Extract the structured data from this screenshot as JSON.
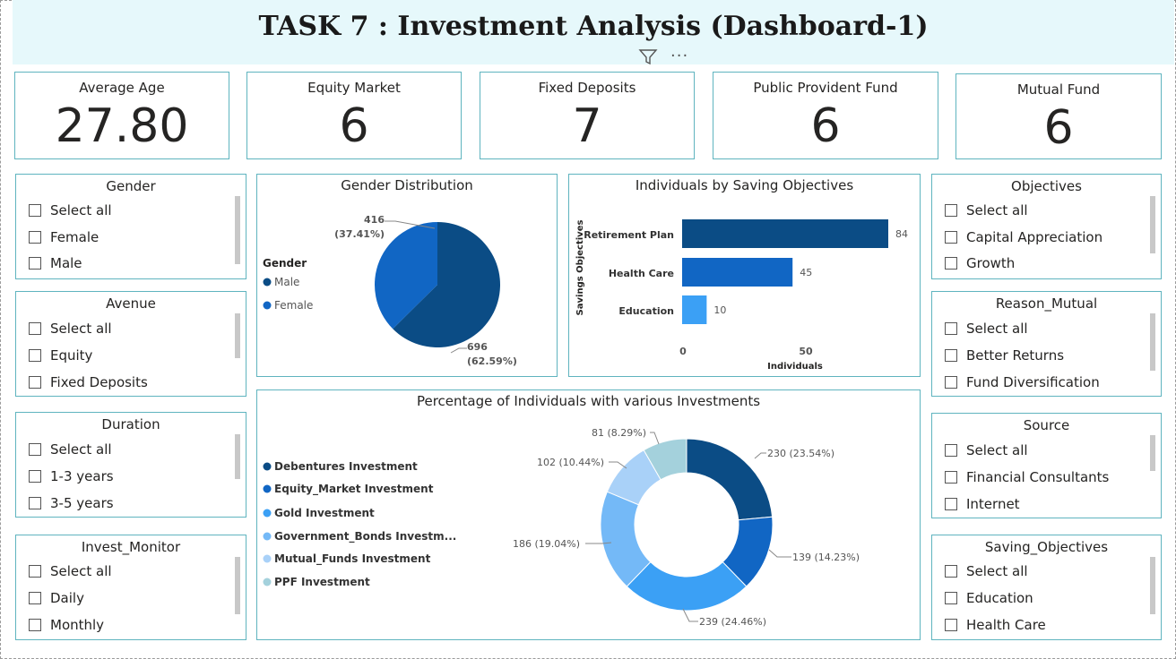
{
  "title": "TASK 7 : Investment Analysis (Dashboard-1)",
  "toolbar": {
    "filter_icon": "filter-icon",
    "more_icon": "more-options-icon",
    "more_glyph": "···"
  },
  "kpis": [
    {
      "label": "Average Age",
      "value": "27.80"
    },
    {
      "label": "Equity Market",
      "value": "6"
    },
    {
      "label": "Fixed Deposits",
      "value": "7"
    },
    {
      "label": "Public Provident Fund",
      "value": "6"
    },
    {
      "label": "Mutual Fund",
      "value": "6"
    }
  ],
  "slicers": {
    "gender": {
      "title": "Gender",
      "items": [
        "Select all",
        "Female",
        "Male"
      ]
    },
    "avenue": {
      "title": "Avenue",
      "items": [
        "Select all",
        "Equity",
        "Fixed Deposits"
      ]
    },
    "duration": {
      "title": "Duration",
      "items": [
        "Select all",
        "1-3 years",
        "3-5 years"
      ]
    },
    "invest_monitor": {
      "title": "Invest_Monitor",
      "items": [
        "Select all",
        "Daily",
        "Monthly"
      ]
    },
    "objectives": {
      "title": "Objectives",
      "items": [
        "Select all",
        "Capital Appreciation",
        "Growth"
      ]
    },
    "reason_mutual": {
      "title": "Reason_Mutual",
      "items": [
        "Select all",
        "Better Returns",
        "Fund Diversification"
      ]
    },
    "source": {
      "title": "Source",
      "items": [
        "Select all",
        "Financial Consultants",
        "Internet"
      ]
    },
    "saving_objectives": {
      "title": "Saving_Objectives",
      "items": [
        "Select all",
        "Education",
        "Health Care"
      ]
    }
  },
  "colors": {
    "dark_blue": "#0b4c85",
    "mid_blue": "#1166c4",
    "bright_blue": "#3ba0f5",
    "sky_blue": "#74b9f7",
    "light_blue": "#a9d1f8",
    "pale_teal": "#a4d1dc",
    "border": "#5fb4bf"
  },
  "chart_data": [
    {
      "type": "pie",
      "title": "Gender Distribution",
      "legend_title": "Gender",
      "legend_position": "left",
      "slices": [
        {
          "label": "Male",
          "value": 696,
          "pct_label": "(62.59%)",
          "color": "#0b4c85"
        },
        {
          "label": "Female",
          "value": 416,
          "pct_label": "(37.41%)",
          "color": "#1166c4"
        }
      ]
    },
    {
      "type": "bar",
      "orientation": "horizontal",
      "title": "Individuals by Saving Objectives",
      "xlabel": "Individuals",
      "ylabel": "Savings Objectives",
      "categories": [
        "Retirement Plan",
        "Health Care",
        "Education"
      ],
      "values": [
        84,
        45,
        10
      ],
      "colors": [
        "#0b4c85",
        "#1166c4",
        "#3ba0f5"
      ],
      "xlim": [
        0,
        84
      ],
      "xticks": [
        "0",
        "50"
      ]
    },
    {
      "type": "pie",
      "subtype": "donut",
      "title": "Percentage of Individuals with various Investments",
      "legend_position": "left",
      "legend": [
        "Debentures Investment",
        "Equity_Market Investment",
        "Gold Investment",
        "Government_Bonds Investm...",
        "Mutual_Funds Investment",
        "PPF Investment"
      ],
      "slices": [
        {
          "value": 230,
          "label": "230 (23.54%)",
          "color": "#0b4c85"
        },
        {
          "value": 139,
          "label": "139 (14.23%)",
          "color": "#1166c4"
        },
        {
          "value": 239,
          "label": "239 (24.46%)",
          "color": "#3ba0f5"
        },
        {
          "value": 186,
          "label": "186 (19.04%)",
          "color": "#74b9f7"
        },
        {
          "value": 102,
          "label": "102 (10.44%)",
          "color": "#a9d1f8"
        },
        {
          "value": 81,
          "label": "81 (8.29%)",
          "color": "#a4d1dc"
        }
      ]
    }
  ]
}
